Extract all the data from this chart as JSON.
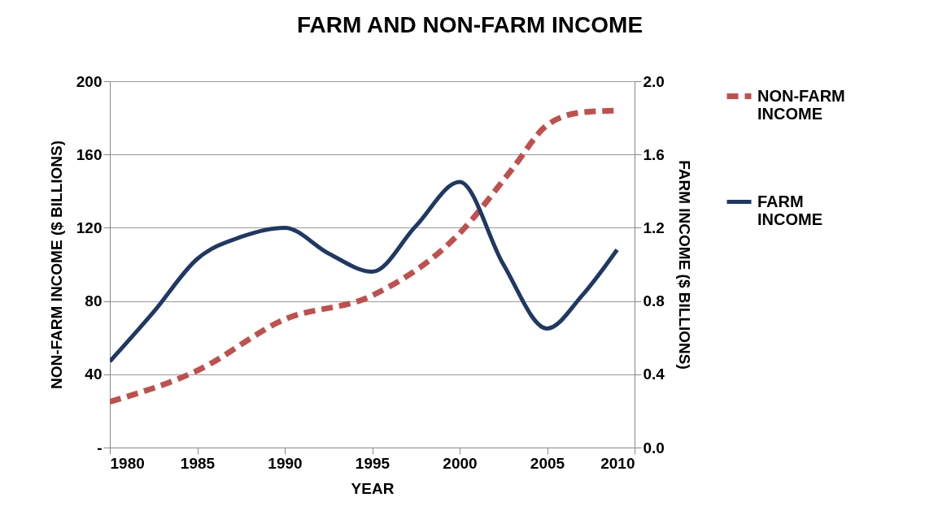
{
  "chart_data": {
    "type": "line",
    "title": "FARM AND NON-FARM INCOME",
    "xlabel": "YEAR",
    "ylabel": "NON-FARM INCOME ($ BILLIONS)",
    "y2label": "FARM INCOME ($ BILLIONS)",
    "xlim": [
      1980,
      2010
    ],
    "xticks": [
      1980,
      1985,
      1990,
      1995,
      2000,
      2005,
      2010
    ],
    "ylim": [
      0,
      200
    ],
    "yticks": [
      {
        "value": 0,
        "label": "-"
      },
      40,
      80,
      120,
      160,
      200
    ],
    "y2lim": [
      0,
      2
    ],
    "y2ticks": [
      {
        "value": 0,
        "label": "0.0"
      },
      0.4,
      0.8,
      1.2,
      1.6,
      {
        "value": 2,
        "label": "2.0"
      }
    ],
    "grid": "y",
    "legend": "right",
    "series": [
      {
        "name": "NON-FARM INCOME",
        "color": "#c0504d",
        "line_style": "dashed",
        "x": [
          1980,
          1985,
          1990,
          1995,
          2000,
          2003,
          2005,
          2007,
          2009
        ],
        "values": [
          25,
          42,
          70,
          83,
          117,
          152,
          176,
          183,
          184
        ]
      },
      {
        "name": "FARM INCOME",
        "color": "#1f3864",
        "line_style": "solid",
        "axis": "y2",
        "x": [
          1980,
          1982.5,
          1985,
          1987.5,
          1990,
          1992.5,
          1995,
          1997.5,
          2000,
          2002.5,
          2005,
          2007,
          2009
        ],
        "values": [
          0.47,
          0.74,
          1.03,
          1.15,
          1.2,
          1.06,
          0.96,
          1.21,
          1.45,
          1.0,
          0.65,
          0.83,
          1.08
        ]
      }
    ]
  }
}
